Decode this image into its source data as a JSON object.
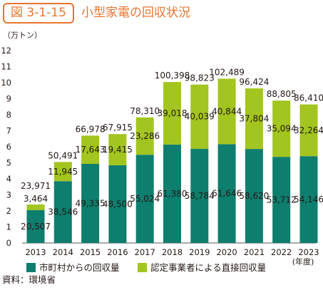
{
  "header": {
    "figure_number": "図 3-1-15",
    "title": "小型家電の回収状況"
  },
  "source": "資料：環境省",
  "chart_data": {
    "type": "bar",
    "stacked": true,
    "unit_label": "（万トン）",
    "x_unit_label": "(年度)",
    "ylim": [
      0,
      12
    ],
    "yticks": [
      0,
      1,
      2,
      3,
      4,
      5,
      6,
      7,
      8,
      9,
      10,
      11,
      12
    ],
    "categories": [
      "2013",
      "2014",
      "2015",
      "2016",
      "2017",
      "2018",
      "2019",
      "2020",
      "2021",
      "2022",
      "2023"
    ],
    "series": [
      {
        "name": "市町村からの回収量",
        "color": "#0e7e6e",
        "labels": [
          "20,507",
          "38,546",
          "49,335",
          "48,500",
          "55,024",
          "61,380",
          "58,784",
          "61,646",
          "58,620",
          "53,712",
          "54,146"
        ]
      },
      {
        "name": "認定事業者による直接回収量",
        "color": "#a2c51f",
        "labels": [
          "3,464",
          "11,945",
          "17,643",
          "19,415",
          "23,286",
          "39,018",
          "40,039",
          "40,844",
          "37,804",
          "35,094",
          "32,264"
        ]
      }
    ],
    "totals": [
      "23,971",
      "50,491",
      "66,978",
      "67,915",
      "78,310",
      "100,398",
      "98,823",
      "102,489",
      "96,424",
      "88,805",
      "86,410"
    ],
    "grid": false,
    "legend_position": "bottom"
  }
}
